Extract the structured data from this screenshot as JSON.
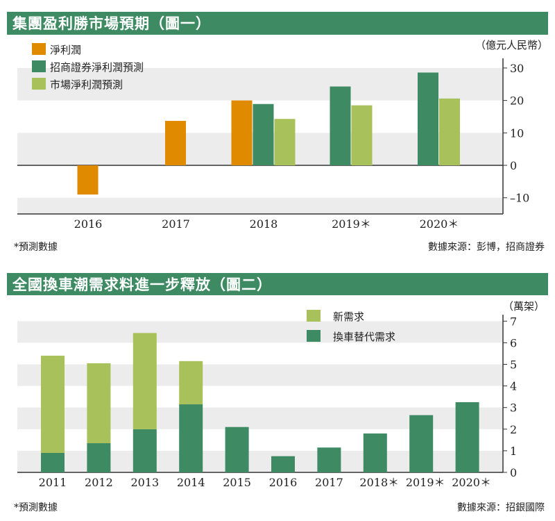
{
  "colors": {
    "orange": "#e08a00",
    "dark_green": "#3d8a63",
    "light_green": "#a9c15a",
    "band_gray": "#ececec"
  },
  "chart_data": [
    {
      "type": "bar",
      "title": "集團盈利勝市場預期（圖一）",
      "unit": "（億元人民幣）",
      "categories": [
        "2016",
        "2017",
        "2018",
        "2019＊",
        "2020＊"
      ],
      "series": [
        {
          "name": "淨利潤",
          "color": "#e08a00",
          "values": [
            -9.0,
            13.7,
            20.0,
            null,
            null
          ]
        },
        {
          "name": "招商證券淨利潤預測",
          "color": "#3d8a63",
          "values": [
            null,
            null,
            18.9,
            24.3,
            28.6
          ]
        },
        {
          "name": "市場淨利潤預測",
          "color": "#a9c15a",
          "values": [
            null,
            null,
            14.3,
            18.5,
            20.6
          ]
        }
      ],
      "yticks": [
        30,
        20,
        10,
        0,
        -10
      ],
      "ylim": [
        -15,
        33
      ],
      "legend": "top-left",
      "footnote": "*預測數據",
      "source": "數據來源：彭博，招商證券"
    },
    {
      "type": "bar",
      "stacked": true,
      "title": "全國換車潮需求料進一步釋放（圖二）",
      "unit": "（萬架）",
      "categories": [
        "2011",
        "2012",
        "2013",
        "2014",
        "2015",
        "2016",
        "2017",
        "2018＊",
        "2019＊",
        "2020＊"
      ],
      "series": [
        {
          "name": "換車替代需求",
          "color": "#3d8a63",
          "values": [
            0.9,
            1.35,
            2.0,
            3.15,
            2.1,
            0.75,
            1.15,
            1.8,
            2.65,
            3.25
          ]
        },
        {
          "name": "新需求",
          "color": "#a9c15a",
          "values": [
            4.5,
            3.7,
            4.45,
            2.0,
            0,
            0,
            0,
            0,
            0,
            0
          ]
        }
      ],
      "legend_order": [
        "新需求",
        "換車替代需求"
      ],
      "yticks": [
        7,
        6,
        5,
        4,
        3,
        2,
        1,
        0
      ],
      "ylim": [
        0,
        7.3
      ],
      "legend": "top-center",
      "footnote": "*預測數據",
      "source": "數據來源：招銀國際"
    }
  ]
}
